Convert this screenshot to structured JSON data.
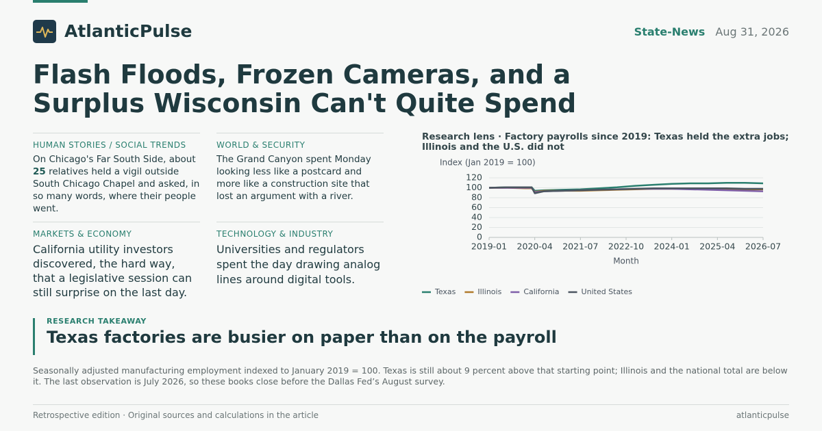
{
  "brand": "AtlanticPulse",
  "section": "State-News",
  "date": "Aug 31, 2026",
  "headline": "Flash Floods, Frozen Cameras, and a Surplus Wisconsin Can't Quite Spend",
  "stories": [
    {
      "kicker": "HUMAN STORIES / SOCIAL TRENDS",
      "body": [
        "On Chicago's Far South Side, about ",
        25,
        " relatives held a vigil outside South Chicago Chapel and asked, in so many words, where their people went."
      ]
    },
    {
      "kicker": "WORLD & SECURITY",
      "body": [
        "The Grand Canyon spent Monday looking less like a postcard and more like a construction site that lost an argument with a river."
      ]
    },
    {
      "kicker": "MARKETS & ECONOMY",
      "body": [
        "California utility investors discovered, the hard way, that a legislative session can still surprise on the last day."
      ]
    },
    {
      "kicker": "TECHNOLOGY & INDUSTRY",
      "body": [
        "Universities and regulators spent the day drawing analog lines around digital tools."
      ]
    }
  ],
  "chart_data": {
    "type": "line",
    "title": "Research lens · Factory payrolls since 2019: Texas held the extra jobs; Illinois and the U.S. did not",
    "y_label": "Index (Jan 2019 = 100)",
    "x_label": "Month",
    "x": [
      "2019-01",
      "2019-07",
      "2020-01",
      "2020-03",
      "2020-04",
      "2020-07",
      "2021-01",
      "2021-07",
      "2022-01",
      "2022-07",
      "2023-01",
      "2023-07",
      "2024-01",
      "2024-07",
      "2025-01",
      "2025-07",
      "2026-01",
      "2026-07"
    ],
    "series": [
      {
        "name": "Texas",
        "color": "#2a7f6f",
        "values": [
          100,
          101,
          101,
          101,
          94,
          95,
          96,
          97,
          99,
          101,
          104,
          106,
          108,
          109,
          109,
          110,
          110,
          109
        ]
      },
      {
        "name": "Illinois",
        "color": "#b07a2a",
        "values": [
          100,
          100,
          99,
          99,
          92,
          94,
          94,
          94,
          95,
          96,
          97,
          98,
          98,
          98,
          98,
          97,
          97,
          97
        ]
      },
      {
        "name": "California",
        "color": "#7e5ea8",
        "values": [
          100,
          100,
          100,
          100,
          91,
          93,
          94,
          95,
          96,
          97,
          98,
          98,
          98,
          97,
          96,
          95,
          94,
          93
        ]
      },
      {
        "name": "United States",
        "color": "#4a5560",
        "values": [
          100,
          101,
          101,
          101,
          89,
          93,
          94,
          95,
          96,
          97,
          98,
          99,
          99,
          99,
          99,
          99,
          98,
          98
        ]
      }
    ],
    "xlim": [
      "2019-01",
      "2026-07"
    ],
    "xticks": [
      "2019-01",
      "2020-04",
      "2021-07",
      "2022-10",
      "2024-01",
      "2025-04",
      "2026-07"
    ],
    "ylim": [
      0,
      125
    ],
    "yticks": [
      0,
      20,
      40,
      60,
      80,
      100,
      120
    ],
    "grid": true,
    "legend": "bottom-left"
  },
  "takeaway": {
    "kicker": "RESEARCH TAKEAWAY",
    "title": "Texas factories are busier on paper than on the payroll",
    "text": "Seasonally adjusted manufacturing employment indexed to January 2019 = 100. Texas is still about 9 percent above that starting point; Illinois and the national total are below it. The last observation is July 2026, so these books close before the Dallas Fed’s August survey."
  },
  "footer": {
    "left": "Retrospective edition · Original sources and calculations in the article",
    "right": "atlanticpulse"
  }
}
